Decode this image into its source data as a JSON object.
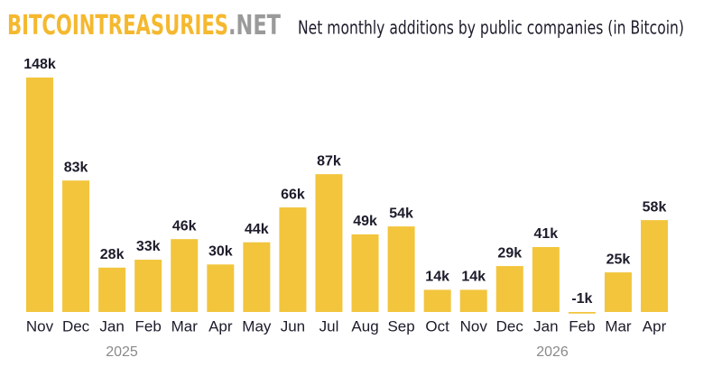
{
  "logo": {
    "main": "BITCOINTREASURIES",
    "suffix": ".NET"
  },
  "chart_data": {
    "type": "bar",
    "title": "Net monthly additions by public companies (in Bitcoin)",
    "categories": [
      "Nov",
      "Dec",
      "Jan",
      "Feb",
      "Mar",
      "Apr",
      "May",
      "Jun",
      "Jul",
      "Aug",
      "Sep",
      "Oct",
      "Nov",
      "Dec",
      "Jan",
      "Feb",
      "Mar",
      "Apr"
    ],
    "values": [
      148000,
      83000,
      28000,
      33000,
      46000,
      30000,
      44000,
      66000,
      87000,
      49000,
      54000,
      14000,
      14000,
      29000,
      41000,
      -1000,
      25000,
      58000
    ],
    "value_labels": [
      "148k",
      "83k",
      "28k",
      "33k",
      "46k",
      "30k",
      "44k",
      "66k",
      "87k",
      "49k",
      "54k",
      "14k",
      "14k",
      "29k",
      "41k",
      "-1k",
      "25k",
      "58k"
    ],
    "year_labels": [
      "2025",
      "2026"
    ],
    "color": "#f2c53d"
  }
}
